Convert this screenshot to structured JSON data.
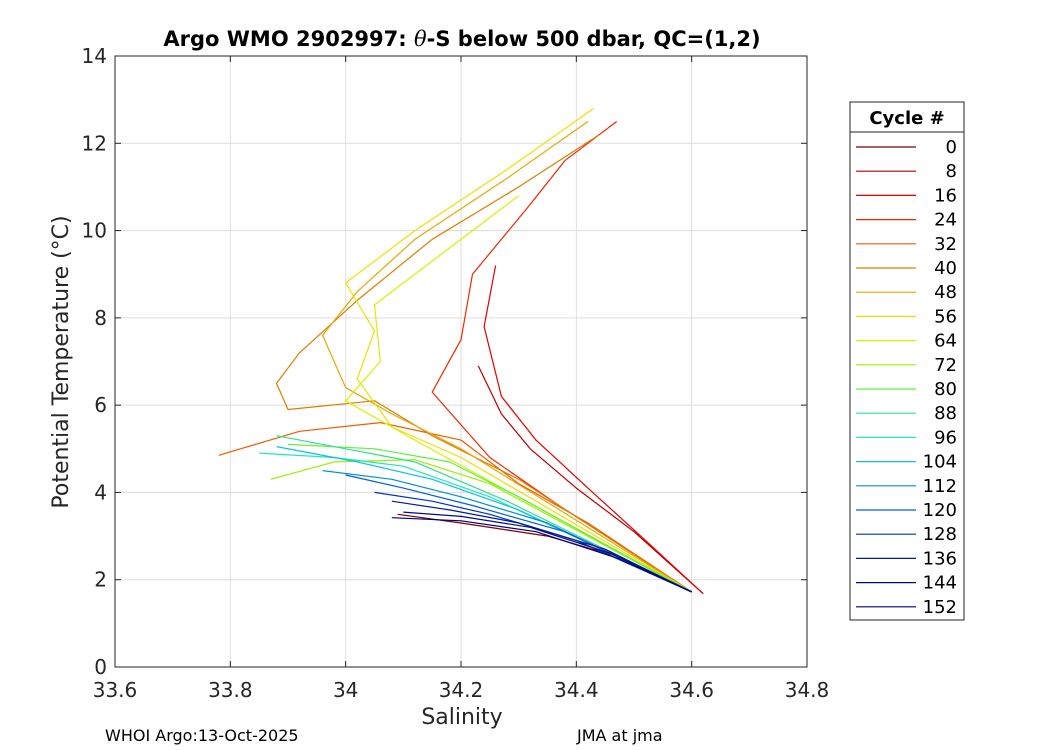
{
  "chart_data": {
    "type": "line",
    "title_prefix": "Argo WMO 2902997: ",
    "title_symbol": "θ",
    "title_suffix": "-S below 500 dbar,  QC=(1,2)",
    "xlabel": "Salinity",
    "ylabel": "Potential Temperature (°C)",
    "xlim": [
      33.6,
      34.8
    ],
    "ylim": [
      0,
      14
    ],
    "xticks": [
      33.6,
      33.8,
      34.0,
      34.2,
      34.4,
      34.6,
      34.8
    ],
    "xtick_labels": [
      "33.6",
      "33.8",
      "34",
      "34.2",
      "34.4",
      "34.6",
      "34.8"
    ],
    "yticks": [
      0,
      2,
      4,
      6,
      8,
      10,
      12,
      14
    ],
    "ytick_labels": [
      "0",
      "2",
      "4",
      "6",
      "8",
      "10",
      "12",
      "14"
    ],
    "grid": true,
    "legend": {
      "title": "Cycle #",
      "placement": "right-outside",
      "entries": [
        "0",
        "8",
        "16",
        "24",
        "32",
        "40",
        "48",
        "56",
        "64",
        "72",
        "80",
        "88",
        "96",
        "104",
        "112",
        "120",
        "128",
        "136",
        "144",
        "152"
      ],
      "colors": [
        "#800000",
        "#b30000",
        "#e60000",
        "#f02800",
        "#f25c00",
        "#d98000",
        "#e6a800",
        "#f0e000",
        "#d8f000",
        "#9cf000",
        "#60f040",
        "#30e090",
        "#20e8c0",
        "#10c0e0",
        "#0090d0",
        "#0060e0",
        "#0030c0",
        "#001a99",
        "#000f80",
        "#000080"
      ]
    },
    "series": [
      {
        "name": "0",
        "color": "#800000",
        "points": [
          [
            34.09,
            3.5
          ],
          [
            34.2,
            3.3
          ],
          [
            34.35,
            3.0
          ],
          [
            34.48,
            2.5
          ],
          [
            34.6,
            1.72
          ]
        ]
      },
      {
        "name": "8",
        "color": "#b30000",
        "points": [
          [
            34.23,
            6.9
          ],
          [
            34.27,
            5.8
          ],
          [
            34.32,
            5.0
          ],
          [
            34.4,
            4.1
          ],
          [
            34.5,
            3.1
          ],
          [
            34.62,
            1.68
          ]
        ]
      },
      {
        "name": "16",
        "color": "#e60000",
        "points": [
          [
            34.26,
            9.2
          ],
          [
            34.24,
            7.8
          ],
          [
            34.27,
            6.2
          ],
          [
            34.33,
            5.2
          ],
          [
            34.42,
            4.1
          ],
          [
            34.52,
            2.9
          ],
          [
            34.62,
            1.68
          ]
        ]
      },
      {
        "name": "24",
        "color": "#f02800",
        "points": [
          [
            34.47,
            12.5
          ],
          [
            34.38,
            11.6
          ],
          [
            34.32,
            10.6
          ],
          [
            34.22,
            9.0
          ],
          [
            34.2,
            7.5
          ],
          [
            34.15,
            6.3
          ],
          [
            34.25,
            4.8
          ],
          [
            34.37,
            3.7
          ],
          [
            34.6,
            1.72
          ]
        ]
      },
      {
        "name": "32",
        "color": "#f25c00",
        "points": [
          [
            33.78,
            4.85
          ],
          [
            33.92,
            5.4
          ],
          [
            34.06,
            5.6
          ],
          [
            34.2,
            5.2
          ],
          [
            34.3,
            4.2
          ],
          [
            34.42,
            3.3
          ],
          [
            34.6,
            1.72
          ]
        ]
      },
      {
        "name": "40",
        "color": "#d98000",
        "points": [
          [
            34.44,
            12.2
          ],
          [
            34.3,
            11.0
          ],
          [
            34.15,
            9.8
          ],
          [
            34.02,
            8.4
          ],
          [
            33.92,
            7.2
          ],
          [
            33.88,
            6.5
          ],
          [
            33.9,
            5.9
          ],
          [
            34.05,
            6.1
          ],
          [
            34.15,
            5.3
          ],
          [
            34.3,
            4.3
          ],
          [
            34.6,
            1.72
          ]
        ]
      },
      {
        "name": "48",
        "color": "#e6a800",
        "points": [
          [
            34.42,
            12.5
          ],
          [
            34.28,
            11.2
          ],
          [
            34.12,
            9.8
          ],
          [
            34.02,
            8.6
          ],
          [
            33.96,
            7.6
          ],
          [
            34.0,
            6.4
          ],
          [
            34.08,
            5.8
          ],
          [
            34.2,
            5.0
          ],
          [
            34.6,
            1.72
          ]
        ]
      },
      {
        "name": "56",
        "color": "#f0e000",
        "points": [
          [
            34.43,
            12.8
          ],
          [
            34.28,
            11.4
          ],
          [
            34.12,
            10.0
          ],
          [
            34.0,
            8.8
          ],
          [
            34.05,
            7.7
          ],
          [
            34.02,
            6.6
          ],
          [
            34.08,
            5.5
          ],
          [
            34.2,
            4.8
          ],
          [
            34.6,
            1.72
          ]
        ]
      },
      {
        "name": "64",
        "color": "#d8f000",
        "points": [
          [
            34.3,
            10.8
          ],
          [
            34.18,
            9.6
          ],
          [
            34.05,
            8.3
          ],
          [
            34.06,
            7.0
          ],
          [
            34.0,
            6.1
          ],
          [
            34.12,
            5.2
          ],
          [
            34.6,
            1.72
          ]
        ]
      },
      {
        "name": "72",
        "color": "#9cf000",
        "points": [
          [
            33.87,
            4.3
          ],
          [
            33.98,
            4.7
          ],
          [
            34.12,
            4.75
          ],
          [
            34.25,
            4.2
          ],
          [
            34.6,
            1.72
          ]
        ]
      },
      {
        "name": "80",
        "color": "#60f040",
        "points": [
          [
            33.9,
            5.1
          ],
          [
            34.05,
            5.0
          ],
          [
            34.18,
            4.7
          ],
          [
            34.3,
            3.9
          ],
          [
            34.6,
            1.72
          ]
        ]
      },
      {
        "name": "88",
        "color": "#30e090",
        "points": [
          [
            33.88,
            5.3
          ],
          [
            34.0,
            5.0
          ],
          [
            34.12,
            4.7
          ],
          [
            34.28,
            3.8
          ],
          [
            34.6,
            1.72
          ]
        ]
      },
      {
        "name": "96",
        "color": "#20e8c0",
        "points": [
          [
            33.85,
            4.9
          ],
          [
            33.98,
            4.8
          ],
          [
            34.1,
            4.6
          ],
          [
            34.25,
            3.9
          ],
          [
            34.6,
            1.72
          ]
        ]
      },
      {
        "name": "104",
        "color": "#10c0e0",
        "points": [
          [
            33.88,
            5.05
          ],
          [
            34.02,
            4.7
          ],
          [
            34.15,
            4.3
          ],
          [
            34.3,
            3.6
          ],
          [
            34.6,
            1.72
          ]
        ]
      },
      {
        "name": "112",
        "color": "#0090d0",
        "points": [
          [
            33.96,
            4.5
          ],
          [
            34.08,
            4.3
          ],
          [
            34.2,
            3.9
          ],
          [
            34.35,
            3.3
          ],
          [
            34.6,
            1.72
          ]
        ]
      },
      {
        "name": "120",
        "color": "#0060e0",
        "points": [
          [
            34.0,
            4.4
          ],
          [
            34.1,
            4.1
          ],
          [
            34.22,
            3.7
          ],
          [
            34.38,
            3.1
          ],
          [
            34.6,
            1.72
          ]
        ]
      },
      {
        "name": "128",
        "color": "#0030c0",
        "points": [
          [
            34.05,
            4.0
          ],
          [
            34.15,
            3.8
          ],
          [
            34.25,
            3.5
          ],
          [
            34.4,
            2.9
          ],
          [
            34.6,
            1.72
          ]
        ]
      },
      {
        "name": "136",
        "color": "#001a99",
        "points": [
          [
            34.08,
            3.8
          ],
          [
            34.18,
            3.6
          ],
          [
            34.3,
            3.3
          ],
          [
            34.45,
            2.7
          ],
          [
            34.6,
            1.72
          ]
        ]
      },
      {
        "name": "144",
        "color": "#000f80",
        "points": [
          [
            34.1,
            3.55
          ],
          [
            34.2,
            3.45
          ],
          [
            34.32,
            3.2
          ],
          [
            34.46,
            2.6
          ],
          [
            34.6,
            1.72
          ]
        ]
      },
      {
        "name": "152",
        "color": "#000080",
        "points": [
          [
            34.08,
            3.42
          ],
          [
            34.2,
            3.35
          ],
          [
            34.33,
            3.1
          ],
          [
            34.47,
            2.5
          ],
          [
            34.6,
            1.72
          ]
        ]
      }
    ]
  },
  "footer": {
    "left": "WHOI Argo:13-Oct-2025",
    "right": "JMA at jma"
  }
}
